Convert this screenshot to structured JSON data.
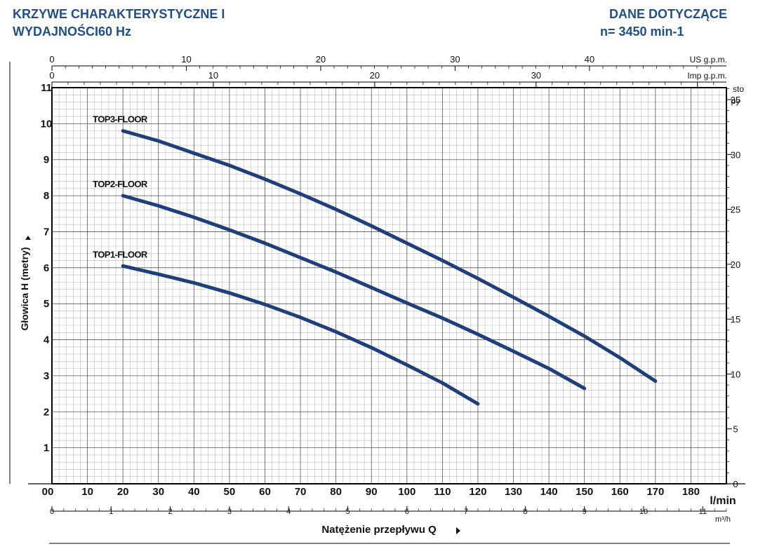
{
  "header": {
    "title_line1": "KRZYWE CHARAKTERYSTYCZNE I",
    "title_line2": "WYDAJNOŚCI60 Hz",
    "right_line1": "DANE DOTYCZĄCE",
    "right_line2": "n= 3450 min-1"
  },
  "chart_data": {
    "type": "line",
    "xlabel": "Natężenie przepływu Q",
    "ylabel": "Głowica H (metry)",
    "x_unit": "l/min",
    "xlim": [
      0,
      190
    ],
    "ylim": [
      0,
      11
    ],
    "x_ticks": [
      "00",
      "10",
      "20",
      "30",
      "40",
      "50",
      "60",
      "70",
      "80",
      "90",
      "100",
      "110",
      "120",
      "130",
      "140",
      "150",
      "160",
      "170",
      "180"
    ],
    "y_ticks": [
      "1",
      "2",
      "3",
      "4",
      "5",
      "6",
      "7",
      "8",
      "9",
      "10",
      "11"
    ],
    "grid": true,
    "secondary_axes": {
      "us_gpm": {
        "label": "US g.p.m.",
        "ticks": [
          "0",
          "10",
          "20",
          "30",
          "40"
        ],
        "per_l_min": 0.26417
      },
      "imp_gpm": {
        "label": "Imp g.p.m.",
        "ticks": [
          "0",
          "10",
          "20",
          "30"
        ],
        "per_l_min": 0.21997
      },
      "m3h": {
        "label": "m³/h",
        "ticks": [
          "0",
          "1",
          "2",
          "3",
          "4",
          "5",
          "6",
          "7",
          "8",
          "9",
          "10",
          "11"
        ],
        "per_l_min": 0.06
      },
      "feet": {
        "label_line1": "sto",
        "label_line2": "py",
        "ticks": [
          "0",
          "5",
          "10",
          "15",
          "20",
          "25",
          "30",
          "35"
        ],
        "per_m": 3.28084
      }
    },
    "series": [
      {
        "name": "TOP3-FLOOR",
        "x": [
          20,
          30,
          40,
          50,
          60,
          70,
          80,
          90,
          100,
          110,
          120,
          130,
          140,
          150,
          160,
          170
        ],
        "y": [
          9.8,
          9.52,
          9.18,
          8.84,
          8.46,
          8.05,
          7.62,
          7.16,
          6.68,
          6.2,
          5.7,
          5.18,
          4.65,
          4.1,
          3.5,
          2.85
        ]
      },
      {
        "name": "TOP2-FLOOR",
        "x": [
          20,
          30,
          40,
          50,
          60,
          70,
          80,
          90,
          100,
          110,
          120,
          130,
          140,
          150
        ],
        "y": [
          8.0,
          7.72,
          7.4,
          7.05,
          6.68,
          6.28,
          5.88,
          5.45,
          5.02,
          4.6,
          4.15,
          3.68,
          3.2,
          2.65
        ]
      },
      {
        "name": "TOP1-FLOOR",
        "x": [
          20,
          30,
          40,
          50,
          60,
          70,
          80,
          90,
          100,
          110,
          120
        ],
        "y": [
          6.05,
          5.82,
          5.58,
          5.3,
          4.98,
          4.62,
          4.22,
          3.78,
          3.3,
          2.8,
          2.22
        ]
      }
    ]
  }
}
